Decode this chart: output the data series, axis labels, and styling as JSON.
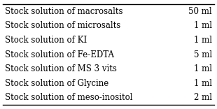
{
  "rows": [
    [
      "Stock solution of macrosalts",
      "50 ml"
    ],
    [
      "Stock solution of microsalts",
      "1 ml"
    ],
    [
      "Stock solution of KI",
      "1 ml"
    ],
    [
      "Stock solution of Fe-EDTA",
      "5 ml"
    ],
    [
      "Stock solution of MS 3 vits",
      "1 ml"
    ],
    [
      "Stock solution of Glycine",
      "1 ml"
    ],
    [
      "Stock solution of meso-inositol",
      "2 ml"
    ]
  ],
  "background_color": "#ffffff",
  "border_color": "#000000",
  "text_color": "#000000",
  "font_size": 8.5,
  "fig_width": 3.1,
  "fig_height": 1.56,
  "dpi": 100
}
